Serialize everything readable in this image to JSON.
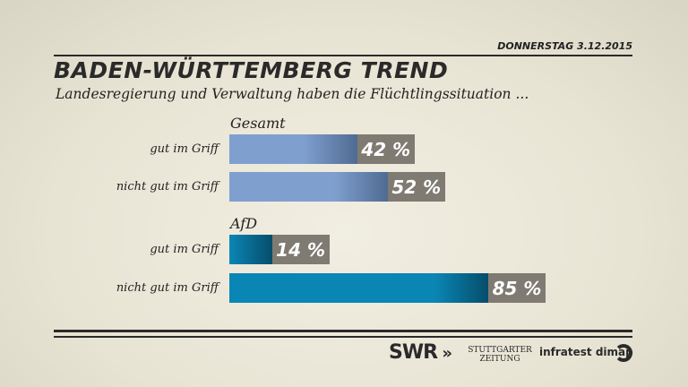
{
  "header": {
    "date": "DONNERSTAG  3.12.2015",
    "title": "BADEN-WÜRTTEMBERG TREND",
    "subtitle": "Landesregierung und Verwaltung haben die Flüchtlingssituation ..."
  },
  "chart_data": {
    "type": "bar",
    "orientation": "horizontal",
    "unit": "%",
    "groups": [
      {
        "name": "Gesamt",
        "categories": [
          "gut im Griff",
          "nicht gut im Griff"
        ],
        "values": [
          42,
          52
        ],
        "labels": [
          "42 %",
          "52 %"
        ],
        "color": "#7f9fcf"
      },
      {
        "name": "AfD",
        "categories": [
          "gut im Griff",
          "nicht gut im Griff"
        ],
        "values": [
          14,
          85
        ],
        "labels": [
          "14 %",
          "85 %"
        ],
        "color": "#0a86b5"
      }
    ]
  },
  "footer": {
    "logos": [
      "SWR",
      "STUTTGARTER ZEITUNG",
      "infratest dimap"
    ]
  }
}
